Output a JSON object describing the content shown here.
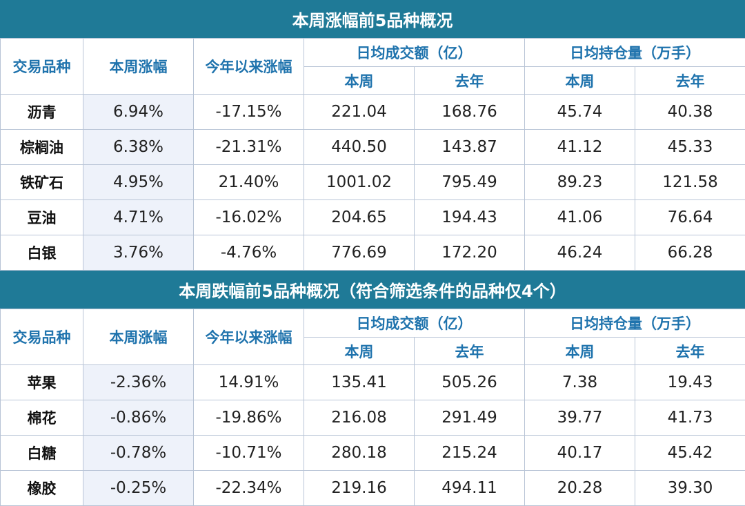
{
  "headers": {
    "variety": "交易品种",
    "week_change": "本周涨幅",
    "ytd_change": "今年以来涨幅",
    "daily_turnover": "日均成交额（亿）",
    "daily_open_interest": "日均持仓量（万手）",
    "this_week": "本周",
    "last_year": "去年"
  },
  "gainers": {
    "title": "本周涨幅前5品种概况",
    "rows": [
      {
        "name": "沥青",
        "week": "6.94%",
        "ytd": "-17.15%",
        "turnover_week": "221.04",
        "turnover_last_year": "168.76",
        "oi_week": "45.74",
        "oi_last_year": "40.38"
      },
      {
        "name": "棕榈油",
        "week": "6.38%",
        "ytd": "-21.31%",
        "turnover_week": "440.50",
        "turnover_last_year": "143.87",
        "oi_week": "41.12",
        "oi_last_year": "45.33"
      },
      {
        "name": "铁矿石",
        "week": "4.95%",
        "ytd": "21.40%",
        "turnover_week": "1001.02",
        "turnover_last_year": "795.49",
        "oi_week": "89.23",
        "oi_last_year": "121.58"
      },
      {
        "name": "豆油",
        "week": "4.71%",
        "ytd": "-16.02%",
        "turnover_week": "204.65",
        "turnover_last_year": "194.43",
        "oi_week": "41.06",
        "oi_last_year": "76.64"
      },
      {
        "name": "白银",
        "week": "3.76%",
        "ytd": "-4.76%",
        "turnover_week": "776.69",
        "turnover_last_year": "172.20",
        "oi_week": "46.24",
        "oi_last_year": "66.28"
      }
    ]
  },
  "losers": {
    "title": "本周跌幅前5品种概况（符合筛选条件的品种仅4个）",
    "rows": [
      {
        "name": "苹果",
        "week": "-2.36%",
        "ytd": "14.91%",
        "turnover_week": "135.41",
        "turnover_last_year": "505.26",
        "oi_week": "7.38",
        "oi_last_year": "19.43"
      },
      {
        "name": "棉花",
        "week": "-0.86%",
        "ytd": "-19.86%",
        "turnover_week": "216.08",
        "turnover_last_year": "291.49",
        "oi_week": "39.77",
        "oi_last_year": "41.73"
      },
      {
        "name": "白糖",
        "week": "-0.78%",
        "ytd": "-10.71%",
        "turnover_week": "280.18",
        "turnover_last_year": "215.24",
        "oi_week": "40.17",
        "oi_last_year": "45.42"
      },
      {
        "name": "橡胶",
        "week": "-0.25%",
        "ytd": "-22.34%",
        "turnover_week": "219.16",
        "turnover_last_year": "494.11",
        "oi_week": "20.28",
        "oi_last_year": "39.30"
      }
    ]
  }
}
